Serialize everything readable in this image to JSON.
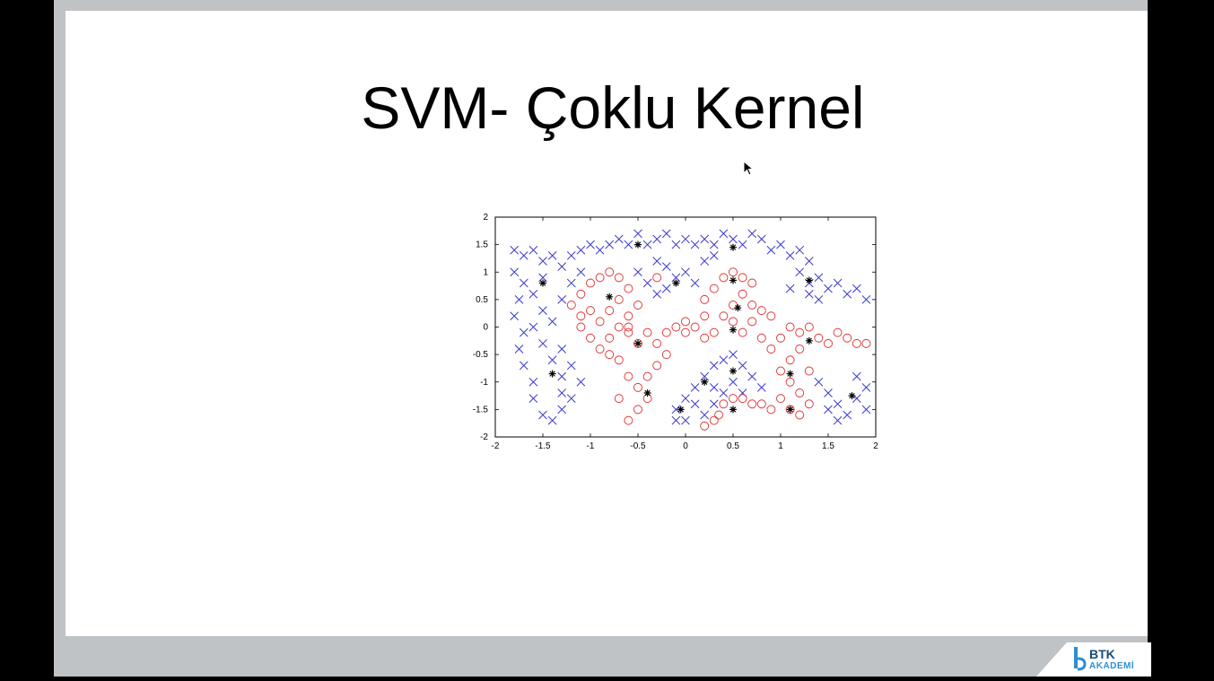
{
  "slide": {
    "title": "SVM- Çoklu Kernel"
  },
  "logo": {
    "name": "BTK",
    "subtitle": "AKADEMİ"
  },
  "colors": {
    "background": "#000000",
    "frame": "#bfc3c6",
    "slide": "#ffffff",
    "class_x": "#3333cc",
    "class_o": "#e03030",
    "support": "#000000",
    "logo_dark": "#1a4a7a",
    "logo_light": "#2e8fd0"
  },
  "chart_data": {
    "type": "scatter",
    "title": "",
    "xlabel": "",
    "ylabel": "",
    "xlim": [
      -2,
      2
    ],
    "ylim": [
      -2,
      2
    ],
    "xticks": [
      -2,
      -1.5,
      -1,
      -0.5,
      0,
      0.5,
      1,
      1.5,
      2
    ],
    "xtick_labels": [
      "-2",
      "-1.5",
      "-1",
      "-0.5",
      "0",
      "0.5",
      "1",
      "1.5",
      "2"
    ],
    "yticks": [
      2,
      1.5,
      1,
      0.5,
      0,
      -0.5,
      -1,
      -1.5,
      -2
    ],
    "ytick_labels": [
      "2",
      "1.5",
      "1",
      "0.5",
      "0",
      "-0.5",
      "-1",
      "-1.5",
      "-2"
    ],
    "grid": false,
    "series": [
      {
        "marker": "x",
        "color": "#3333cc",
        "points": [
          [
            -1.8,
            1.4
          ],
          [
            -1.7,
            1.3
          ],
          [
            -1.6,
            1.4
          ],
          [
            -1.5,
            1.2
          ],
          [
            -1.4,
            1.3
          ],
          [
            -1.3,
            1.1
          ],
          [
            -1.2,
            1.3
          ],
          [
            -1.1,
            1.4
          ],
          [
            -1.0,
            1.5
          ],
          [
            -0.9,
            1.4
          ],
          [
            -0.8,
            1.5
          ],
          [
            -0.7,
            1.6
          ],
          [
            -0.6,
            1.5
          ],
          [
            -0.5,
            1.7
          ],
          [
            -0.4,
            1.5
          ],
          [
            -0.3,
            1.6
          ],
          [
            -0.2,
            1.7
          ],
          [
            -0.1,
            1.5
          ],
          [
            0.0,
            1.6
          ],
          [
            0.1,
            1.5
          ],
          [
            0.2,
            1.6
          ],
          [
            0.3,
            1.5
          ],
          [
            0.4,
            1.7
          ],
          [
            0.5,
            1.6
          ],
          [
            0.6,
            1.5
          ],
          [
            0.7,
            1.7
          ],
          [
            0.8,
            1.6
          ],
          [
            0.9,
            1.4
          ],
          [
            1.0,
            1.5
          ],
          [
            1.1,
            1.3
          ],
          [
            1.2,
            1.4
          ],
          [
            1.3,
            1.2
          ],
          [
            -1.8,
            1.0
          ],
          [
            -1.7,
            0.8
          ],
          [
            -1.75,
            0.5
          ],
          [
            -1.8,
            0.2
          ],
          [
            -1.7,
            -0.1
          ],
          [
            -1.75,
            -0.4
          ],
          [
            -1.7,
            -0.7
          ],
          [
            -1.6,
            -1.0
          ],
          [
            -1.6,
            -1.3
          ],
          [
            -1.5,
            -1.6
          ],
          [
            -1.4,
            -1.7
          ],
          [
            -1.3,
            -1.5
          ],
          [
            -1.5,
            0.9
          ],
          [
            -1.6,
            0.6
          ],
          [
            -1.5,
            0.3
          ],
          [
            -1.6,
            0.0
          ],
          [
            -1.5,
            -0.3
          ],
          [
            -1.4,
            -0.6
          ],
          [
            -1.3,
            -0.9
          ],
          [
            -1.3,
            -1.2
          ],
          [
            -1.2,
            -1.3
          ],
          [
            -1.1,
            -1.0
          ],
          [
            -1.2,
            -0.7
          ],
          [
            -1.3,
            -0.4
          ],
          [
            -1.4,
            0.1
          ],
          [
            -1.3,
            0.5
          ],
          [
            -1.2,
            0.8
          ],
          [
            -1.1,
            1.0
          ],
          [
            -0.5,
            1.0
          ],
          [
            -0.4,
            0.8
          ],
          [
            -0.3,
            0.6
          ],
          [
            -0.2,
            0.7
          ],
          [
            -0.1,
            0.9
          ],
          [
            0.0,
            1.0
          ],
          [
            0.1,
            0.8
          ],
          [
            -0.2,
            1.1
          ],
          [
            -0.3,
            1.2
          ],
          [
            0.2,
            1.2
          ],
          [
            0.3,
            1.3
          ],
          [
            1.2,
            1.0
          ],
          [
            1.3,
            0.8
          ],
          [
            1.4,
            0.9
          ],
          [
            1.5,
            0.7
          ],
          [
            1.6,
            0.8
          ],
          [
            1.7,
            0.6
          ],
          [
            1.8,
            0.7
          ],
          [
            1.9,
            0.5
          ],
          [
            1.4,
            0.5
          ],
          [
            1.3,
            0.6
          ],
          [
            1.1,
            0.7
          ],
          [
            -0.1,
            -1.5
          ],
          [
            0.0,
            -1.3
          ],
          [
            0.1,
            -1.1
          ],
          [
            0.2,
            -0.9
          ],
          [
            0.3,
            -0.7
          ],
          [
            0.4,
            -0.6
          ],
          [
            0.5,
            -0.5
          ],
          [
            0.6,
            -0.7
          ],
          [
            0.7,
            -0.9
          ],
          [
            0.8,
            -1.1
          ],
          [
            0.5,
            -1.0
          ],
          [
            0.4,
            -1.2
          ],
          [
            0.3,
            -1.4
          ],
          [
            0.2,
            -1.6
          ],
          [
            0.1,
            -1.4
          ],
          [
            0.0,
            -1.7
          ],
          [
            -0.1,
            -1.7
          ],
          [
            0.6,
            -1.2
          ],
          [
            0.3,
            -1.1
          ],
          [
            1.4,
            -1.0
          ],
          [
            1.5,
            -1.2
          ],
          [
            1.6,
            -1.4
          ],
          [
            1.7,
            -1.6
          ],
          [
            1.8,
            -1.3
          ],
          [
            1.9,
            -1.1
          ],
          [
            1.8,
            -0.9
          ],
          [
            1.9,
            -1.5
          ],
          [
            1.6,
            -1.7
          ],
          [
            1.5,
            -1.5
          ]
        ]
      },
      {
        "marker": "o",
        "color": "#e03030",
        "points": [
          [
            -1.1,
            0.6
          ],
          [
            -1.0,
            0.8
          ],
          [
            -0.9,
            0.9
          ],
          [
            -0.8,
            1.0
          ],
          [
            -0.7,
            0.9
          ],
          [
            -0.6,
            0.7
          ],
          [
            -0.7,
            0.5
          ],
          [
            -0.8,
            0.3
          ],
          [
            -0.9,
            0.1
          ],
          [
            -1.0,
            0.3
          ],
          [
            -1.1,
            0.2
          ],
          [
            -1.2,
            0.4
          ],
          [
            -1.1,
            0.0
          ],
          [
            -1.0,
            -0.2
          ],
          [
            -0.9,
            -0.4
          ],
          [
            -0.8,
            -0.2
          ],
          [
            -0.7,
            0.0
          ],
          [
            -0.6,
            0.2
          ],
          [
            -0.5,
            0.4
          ],
          [
            -0.6,
            -0.1
          ],
          [
            -0.5,
            -0.3
          ],
          [
            -0.4,
            -0.1
          ],
          [
            -0.3,
            -0.3
          ],
          [
            -0.2,
            -0.5
          ],
          [
            -0.3,
            -0.7
          ],
          [
            -0.4,
            -0.9
          ],
          [
            -0.5,
            -1.1
          ],
          [
            -0.4,
            -1.3
          ],
          [
            -0.5,
            -1.5
          ],
          [
            -0.6,
            -1.7
          ],
          [
            -0.7,
            -1.3
          ],
          [
            -0.6,
            -0.9
          ],
          [
            -0.7,
            -0.6
          ],
          [
            -0.8,
            -0.5
          ],
          [
            -0.2,
            -0.1
          ],
          [
            -0.1,
            0.0
          ],
          [
            0.0,
            -0.1
          ],
          [
            0.1,
            0.0
          ],
          [
            0.2,
            -0.2
          ],
          [
            0.3,
            -0.1
          ],
          [
            0.2,
            0.2
          ],
          [
            0.2,
            0.5
          ],
          [
            0.3,
            0.7
          ],
          [
            0.4,
            0.9
          ],
          [
            0.5,
            1.0
          ],
          [
            0.6,
            0.9
          ],
          [
            0.7,
            0.8
          ],
          [
            0.6,
            0.6
          ],
          [
            0.5,
            0.4
          ],
          [
            0.4,
            0.2
          ],
          [
            0.5,
            0.1
          ],
          [
            0.6,
            -0.1
          ],
          [
            0.7,
            0.1
          ],
          [
            0.8,
            0.3
          ],
          [
            0.9,
            0.2
          ],
          [
            0.8,
            -0.2
          ],
          [
            0.9,
            -0.4
          ],
          [
            1.0,
            -0.2
          ],
          [
            1.1,
            0.0
          ],
          [
            1.2,
            -0.1
          ],
          [
            1.3,
            0.0
          ],
          [
            1.4,
            -0.2
          ],
          [
            1.5,
            -0.3
          ],
          [
            1.6,
            -0.1
          ],
          [
            1.7,
            -0.2
          ],
          [
            1.8,
            -0.3
          ],
          [
            1.9,
            -0.3
          ],
          [
            1.2,
            -0.4
          ],
          [
            1.1,
            -0.6
          ],
          [
            1.0,
            -0.8
          ],
          [
            1.1,
            -1.0
          ],
          [
            1.2,
            -1.2
          ],
          [
            1.3,
            -1.4
          ],
          [
            1.2,
            -1.6
          ],
          [
            1.1,
            -1.5
          ],
          [
            1.0,
            -1.3
          ],
          [
            0.9,
            -1.5
          ],
          [
            0.8,
            -1.4
          ],
          [
            0.7,
            -1.4
          ],
          [
            0.6,
            -1.3
          ],
          [
            0.5,
            -1.3
          ],
          [
            0.4,
            -1.4
          ],
          [
            0.3,
            -1.7
          ],
          [
            0.2,
            -1.8
          ],
          [
            0.35,
            -1.6
          ],
          [
            -0.3,
            0.9
          ],
          [
            -0.6,
            0.0
          ],
          [
            0.0,
            0.1
          ],
          [
            0.7,
            0.4
          ],
          [
            1.3,
            -0.8
          ]
        ]
      },
      {
        "marker": "*",
        "color": "#000000",
        "points": [
          [
            -1.5,
            0.8
          ],
          [
            -0.8,
            0.55
          ],
          [
            -0.5,
            1.5
          ],
          [
            -0.1,
            0.8
          ],
          [
            0.5,
            1.45
          ],
          [
            0.5,
            0.85
          ],
          [
            0.55,
            0.35
          ],
          [
            0.5,
            -0.05
          ],
          [
            0.5,
            -0.8
          ],
          [
            -0.5,
            -0.3
          ],
          [
            -0.4,
            -1.2
          ],
          [
            -1.4,
            -0.85
          ],
          [
            0.2,
            -1.0
          ],
          [
            -0.05,
            -1.5
          ],
          [
            0.5,
            -1.5
          ],
          [
            1.1,
            -0.85
          ],
          [
            1.1,
            -1.5
          ],
          [
            1.3,
            -0.25
          ],
          [
            1.3,
            0.85
          ],
          [
            1.75,
            -1.25
          ]
        ]
      }
    ]
  }
}
